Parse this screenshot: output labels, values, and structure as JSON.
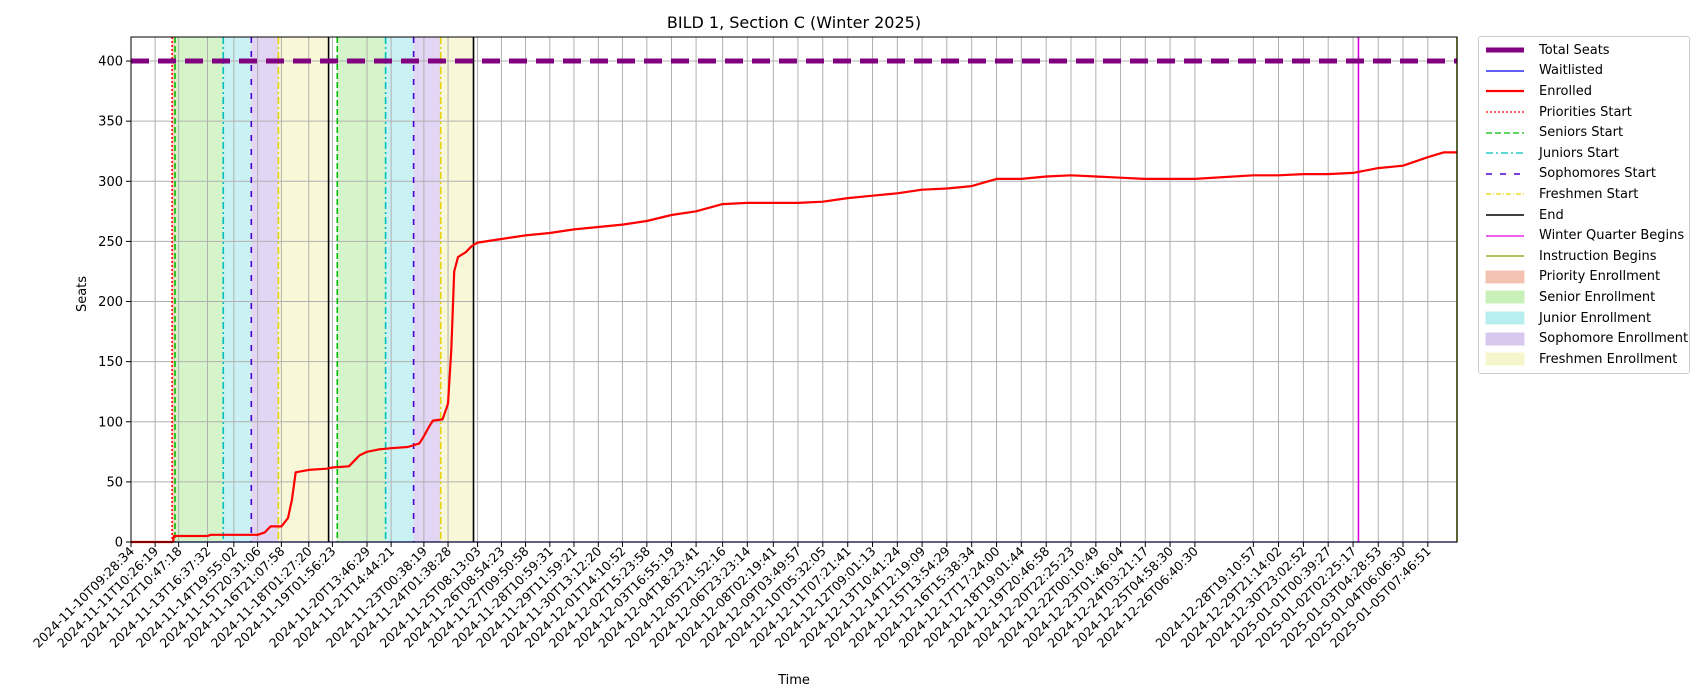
{
  "chart_data": {
    "type": "line",
    "title": "BILD 1, Section C (Winter 2025)",
    "xlabel": "Time",
    "ylabel": "Seats",
    "ylim": [
      0,
      420
    ],
    "yticks": [
      0,
      50,
      100,
      150,
      200,
      250,
      300,
      350,
      400
    ],
    "xlim": [
      "2024-11-10T09:28:34",
      "2025-01-06T14:00:00"
    ],
    "xticks": [
      "2024-11-10T09:28:34",
      "2024-11-11T10:26:19",
      "2024-11-12T10:47:18",
      "2024-11-13T16:37:32",
      "2024-11-14T19:55:02",
      "2024-11-15T20:31:06",
      "2024-11-16T21:07:58",
      "2024-11-18T01:27:20",
      "2024-11-19T01:56:23",
      "2024-11-20T13:46:29",
      "2024-11-21T14:44:21",
      "2024-11-23T00:38:19",
      "2024-11-24T01:38:28",
      "2024-11-25T08:13:03",
      "2024-11-26T08:54:23",
      "2024-11-27T09:50:58",
      "2024-11-28T10:59:31",
      "2024-11-29T11:59:21",
      "2024-11-30T13:12:20",
      "2024-12-01T14:10:52",
      "2024-12-02T15:23:58",
      "2024-12-03T16:55:19",
      "2024-12-04T18:23:41",
      "2024-12-05T21:52:16",
      "2024-12-06T23:23:14",
      "2024-12-08T02:19:41",
      "2024-12-09T03:49:57",
      "2024-12-10T05:32:05",
      "2024-12-11T07:21:41",
      "2024-12-12T09:01:13",
      "2024-12-13T10:41:24",
      "2024-12-14T12:19:09",
      "2024-12-15T13:54:29",
      "2024-12-16T15:38:34",
      "2024-12-17T17:24:00",
      "2024-12-18T19:01:44",
      "2024-12-19T20:46:58",
      "2024-12-20T22:25:23",
      "2024-12-22T00:10:49",
      "2024-12-23T01:46:04",
      "2024-12-24T03:21:17",
      "2024-12-25T04:58:30",
      "2024-12-26T06:40:30",
      "2024-12-28T19:10:57",
      "2024-12-29T21:14:02",
      "2024-12-30T23:02:52",
      "2025-01-01T00:39:27",
      "2025-01-02T02:25:17",
      "2025-01-03T04:28:53",
      "2025-01-04T06:06:30",
      "2025-01-05T07:46:51"
    ],
    "grid": true,
    "legend_position": "outside upper right",
    "series": [
      {
        "name": "Total Seats",
        "color": "#800080",
        "style": "dashed-thick",
        "points": [
          [
            "2024-11-10T09:28:34",
            400
          ],
          [
            "2025-01-06T14:00:00",
            400
          ]
        ]
      },
      {
        "name": "Waitlisted",
        "color": "#0000ff",
        "style": "solid",
        "points": [
          [
            "2024-11-10T09:28:34",
            0
          ],
          [
            "2025-01-06T14:00:00",
            0
          ]
        ]
      },
      {
        "name": "Enrolled",
        "color": "#ff0000",
        "style": "solid-thick",
        "points": [
          [
            "2024-11-10T09:28:34",
            0
          ],
          [
            "2024-11-12T05:00:00",
            0
          ],
          [
            "2024-11-12T06:00:00",
            5
          ],
          [
            "2024-11-13T16:37:32",
            5
          ],
          [
            "2024-11-13T20:00:00",
            6
          ],
          [
            "2024-11-15T20:31:06",
            6
          ],
          [
            "2024-11-16T04:00:00",
            8
          ],
          [
            "2024-11-16T10:00:00",
            13
          ],
          [
            "2024-11-16T21:07:58",
            13
          ],
          [
            "2024-11-17T04:00:00",
            20
          ],
          [
            "2024-11-17T08:00:00",
            35
          ],
          [
            "2024-11-17T12:00:00",
            58
          ],
          [
            "2024-11-18T01:27:20",
            60
          ],
          [
            "2024-11-18T20:00:00",
            61
          ],
          [
            "2024-11-19T01:56:23",
            62
          ],
          [
            "2024-11-19T19:00:00",
            63
          ],
          [
            "2024-11-20T06:00:00",
            72
          ],
          [
            "2024-11-20T13:46:29",
            75
          ],
          [
            "2024-11-21T02:00:00",
            77
          ],
          [
            "2024-11-21T14:44:21",
            78
          ],
          [
            "2024-11-22T08:00:00",
            79
          ],
          [
            "2024-11-22T20:00:00",
            82
          ],
          [
            "2024-11-23T00:38:19",
            88
          ],
          [
            "2024-11-23T06:00:00",
            96
          ],
          [
            "2024-11-23T10:00:00",
            101
          ],
          [
            "2024-11-23T20:00:00",
            102
          ],
          [
            "2024-11-24T01:38:28",
            115
          ],
          [
            "2024-11-24T05:00:00",
            160
          ],
          [
            "2024-11-24T08:00:00",
            225
          ],
          [
            "2024-11-24T12:00:00",
            237
          ],
          [
            "2024-11-24T20:00:00",
            241
          ],
          [
            "2024-11-25T02:00:00",
            246
          ],
          [
            "2024-11-25T08:13:03",
            249
          ],
          [
            "2024-11-26T08:54:23",
            252
          ],
          [
            "2024-11-27T09:50:58",
            255
          ],
          [
            "2024-11-28T10:59:31",
            257
          ],
          [
            "2024-11-29T11:59:21",
            260
          ],
          [
            "2024-11-30T13:12:20",
            262
          ],
          [
            "2024-12-01T14:10:52",
            264
          ],
          [
            "2024-12-02T15:23:58",
            267
          ],
          [
            "2024-12-03T16:55:19",
            272
          ],
          [
            "2024-12-04T18:23:41",
            275
          ],
          [
            "2024-12-05T21:52:16",
            281
          ],
          [
            "2024-12-06T23:23:14",
            282
          ],
          [
            "2024-12-08T02:19:41",
            282
          ],
          [
            "2024-12-09T03:49:57",
            282
          ],
          [
            "2024-12-10T05:32:05",
            283
          ],
          [
            "2024-12-11T07:21:41",
            286
          ],
          [
            "2024-12-12T09:01:13",
            288
          ],
          [
            "2024-12-13T10:41:24",
            290
          ],
          [
            "2024-12-14T12:19:09",
            293
          ],
          [
            "2024-12-15T13:54:29",
            294
          ],
          [
            "2024-12-16T15:38:34",
            296
          ],
          [
            "2024-12-17T17:24:00",
            302
          ],
          [
            "2024-12-18T19:01:44",
            302
          ],
          [
            "2024-12-19T20:46:58",
            304
          ],
          [
            "2024-12-20T22:25:23",
            305
          ],
          [
            "2024-12-22T00:10:49",
            304
          ],
          [
            "2024-12-23T01:46:04",
            303
          ],
          [
            "2024-12-24T03:21:17",
            302
          ],
          [
            "2024-12-25T04:58:30",
            302
          ],
          [
            "2024-12-26T06:40:30",
            302
          ],
          [
            "2024-12-28T19:10:57",
            305
          ],
          [
            "2024-12-29T21:14:02",
            305
          ],
          [
            "2024-12-30T23:02:52",
            306
          ],
          [
            "2025-01-01T00:39:27",
            306
          ],
          [
            "2025-01-02T02:25:17",
            307
          ],
          [
            "2025-01-03T04:28:53",
            311
          ],
          [
            "2025-01-04T06:06:30",
            313
          ],
          [
            "2025-01-05T07:46:51",
            320
          ],
          [
            "2025-01-06T00:00:00",
            324
          ],
          [
            "2025-01-06T14:00:00",
            324
          ]
        ]
      }
    ],
    "vlines": [
      {
        "name": "Priorities Start",
        "color": "#ff0000",
        "style": "dotted",
        "x": "2024-11-12T04:00:00"
      },
      {
        "name": "Seniors Start",
        "color": "#00bb00",
        "style": "dashed",
        "x": [
          "2024-11-12T07:00:00",
          "2024-11-19T07:00:00"
        ]
      },
      {
        "name": "Juniors Start",
        "color": "#00bfbf",
        "style": "dashdot",
        "x": [
          "2024-11-14T09:00:00",
          "2024-11-21T09:00:00"
        ]
      },
      {
        "name": "Sophomores Start",
        "color": "#4b00d0",
        "style": "loosedash",
        "x": [
          "2024-11-15T14:00:00",
          "2024-11-22T14:00:00"
        ]
      },
      {
        "name": "Freshmen Start",
        "color": "#e6d200",
        "style": "dashdot",
        "x": [
          "2024-11-16T18:00:00",
          "2024-11-23T18:00:00"
        ]
      },
      {
        "name": "End",
        "color": "#000000",
        "style": "solid",
        "x": [
          "2024-11-18T22:00:00",
          "2024-11-25T04:00:00"
        ]
      },
      {
        "name": "Winter Quarter Begins",
        "color": "#e000e0",
        "style": "solid",
        "x": "2025-01-02T08:00:00"
      },
      {
        "name": "Instruction Begins",
        "color": "#7fa000",
        "style": "solid",
        "x": "2025-01-06T14:00:00"
      }
    ],
    "spans": [
      {
        "name": "Priority Enrollment",
        "color": "#f4c2b0",
        "ranges": [
          [
            "2024-11-12T04:00:00",
            "2024-11-12T07:00:00"
          ]
        ]
      },
      {
        "name": "Senior Enrollment",
        "color": "#c8f0b8",
        "ranges": [
          [
            "2024-11-12T07:00:00",
            "2024-11-14T09:00:00"
          ],
          [
            "2024-11-19T07:00:00",
            "2024-11-21T09:00:00"
          ]
        ]
      },
      {
        "name": "Junior Enrollment",
        "color": "#b8eef0",
        "ranges": [
          [
            "2024-11-14T09:00:00",
            "2024-11-15T14:00:00"
          ],
          [
            "2024-11-21T09:00:00",
            "2024-11-22T14:00:00"
          ]
        ]
      },
      {
        "name": "Sophomore Enrollment",
        "color": "#d8c8f0",
        "ranges": [
          [
            "2024-11-15T14:00:00",
            "2024-11-16T18:00:00"
          ],
          [
            "2024-11-22T14:00:00",
            "2024-11-23T18:00:00"
          ]
        ]
      },
      {
        "name": "Freshmen Enrollment",
        "color": "#f6f6cc",
        "ranges": [
          [
            "2024-11-16T18:00:00",
            "2024-11-18T22:00:00"
          ],
          [
            "2024-11-23T18:00:00",
            "2024-11-25T04:00:00"
          ]
        ]
      }
    ],
    "legend": [
      {
        "label": "Total Seats",
        "kind": "line",
        "color": "#800080",
        "dash": "",
        "width": 5
      },
      {
        "label": "Waitlisted",
        "kind": "line",
        "color": "#0000ff",
        "dash": "",
        "width": 1.2
      },
      {
        "label": "Enrolled",
        "kind": "line",
        "color": "#ff0000",
        "dash": "",
        "width": 2.2
      },
      {
        "label": "Priorities Start",
        "kind": "line",
        "color": "#ff0000",
        "dash": "2,2",
        "width": 1.3
      },
      {
        "label": "Seniors Start",
        "kind": "line",
        "color": "#00bb00",
        "dash": "6,3",
        "width": 1.3
      },
      {
        "label": "Juniors Start",
        "kind": "line",
        "color": "#00bfbf",
        "dash": "7,3,2,3",
        "width": 1.3
      },
      {
        "label": "Sophomores Start",
        "kind": "line",
        "color": "#4b00d0",
        "dash": "6,8",
        "width": 1.5
      },
      {
        "label": "Freshmen Start",
        "kind": "line",
        "color": "#e6d200",
        "dash": "5,2,1,2",
        "width": 1.3
      },
      {
        "label": "End",
        "kind": "line",
        "color": "#000000",
        "dash": "",
        "width": 1.6
      },
      {
        "label": "Winter Quarter Begins",
        "kind": "line",
        "color": "#e000e0",
        "dash": "",
        "width": 1.3
      },
      {
        "label": "Instruction Begins",
        "kind": "line",
        "color": "#7fa000",
        "dash": "",
        "width": 1.3
      },
      {
        "label": "Priority Enrollment",
        "kind": "patch",
        "color": "#f4c2b0"
      },
      {
        "label": "Senior Enrollment",
        "kind": "patch",
        "color": "#c8f0b8"
      },
      {
        "label": "Junior Enrollment",
        "kind": "patch",
        "color": "#b8eef0"
      },
      {
        "label": "Sophomore Enrollment",
        "kind": "patch",
        "color": "#d8c8f0"
      },
      {
        "label": "Freshmen Enrollment",
        "kind": "patch",
        "color": "#f6f6cc"
      }
    ]
  }
}
